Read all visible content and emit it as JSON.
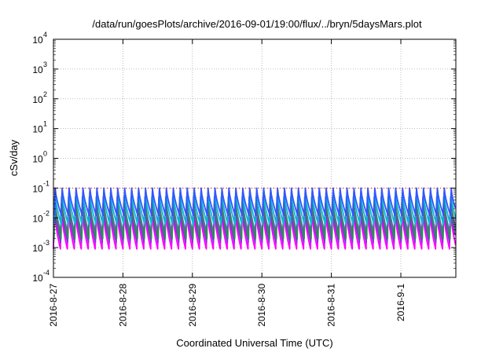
{
  "chart_data": {
    "type": "line",
    "title": "/data/run/goesPlots/archive/2016-09-01/19:00/flux/../bryn/5daysMars.plot",
    "xlabel": "Coordinated Universal Time (UTC)",
    "ylabel": "cSv/day",
    "yscale": "log",
    "ylim": [
      0.0001,
      10000
    ],
    "y_ticks": [
      {
        "base": "10",
        "exp": "-4",
        "value": 0.0001
      },
      {
        "base": "10",
        "exp": "-3",
        "value": 0.001
      },
      {
        "base": "10",
        "exp": "-2",
        "value": 0.01
      },
      {
        "base": "10",
        "exp": "-1",
        "value": 0.1
      },
      {
        "base": "10",
        "exp": "0",
        "value": 1
      },
      {
        "base": "10",
        "exp": "1",
        "value": 10
      },
      {
        "base": "10",
        "exp": "2",
        "value": 100
      },
      {
        "base": "10",
        "exp": "3",
        "value": 1000
      },
      {
        "base": "10",
        "exp": "4",
        "value": 10000
      }
    ],
    "x_range": [
      "2016-08-27",
      "2016-09-01T19:00"
    ],
    "x_ticks": [
      "2016-8-27",
      "2016-8-28",
      "2016-8-29",
      "2016-8-30",
      "2016-8-31",
      "2016-9-1"
    ],
    "grid": true,
    "cycles_per_day": 10,
    "threshold_line": {
      "value": 0.1,
      "color": "#ff0000",
      "style": "dotted"
    },
    "series": [
      {
        "color": "#ff00ff",
        "peak": 0.02,
        "trough": 0.0009
      },
      {
        "color": "#8a2be2",
        "peak": 0.03,
        "trough": 0.0015
      },
      {
        "color": "#6a5acd",
        "peak": 0.05,
        "trough": 0.003
      },
      {
        "color": "#2e8b57",
        "peak": 0.04,
        "trough": 0.002
      },
      {
        "color": "#00bcd4",
        "peak": 0.07,
        "trough": 0.006
      },
      {
        "color": "#3355ff",
        "peak": 0.1,
        "trough": 0.012
      }
    ]
  }
}
